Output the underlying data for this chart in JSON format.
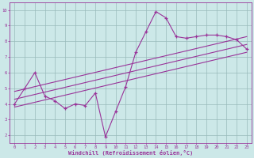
{
  "bg_color": "#cce8e8",
  "grid_color": "#99bbbb",
  "line_color": "#993399",
  "marker_color": "#993399",
  "xlabel": "Windchill (Refroidissement éolien,°C)",
  "xlim": [
    -0.5,
    23.5
  ],
  "ylim": [
    1.5,
    10.5
  ],
  "yticks": [
    2,
    3,
    4,
    5,
    6,
    7,
    8,
    9,
    10
  ],
  "xticks": [
    0,
    1,
    2,
    3,
    4,
    5,
    6,
    7,
    8,
    9,
    10,
    11,
    12,
    13,
    14,
    15,
    16,
    17,
    18,
    19,
    20,
    21,
    22,
    23
  ],
  "scatter_x": [
    0,
    1,
    2,
    3,
    4,
    5,
    6,
    7,
    8,
    9,
    10,
    11,
    12,
    13,
    14,
    15,
    16,
    17,
    18,
    19,
    20,
    21,
    22,
    23
  ],
  "scatter_y": [
    4.0,
    5.0,
    6.0,
    4.5,
    4.2,
    3.7,
    4.0,
    3.9,
    4.7,
    1.9,
    3.5,
    5.1,
    7.3,
    8.6,
    9.9,
    9.5,
    8.3,
    8.2,
    8.3,
    8.4,
    8.4,
    8.3,
    8.1,
    7.5
  ],
  "line1_x": [
    0,
    23
  ],
  "line1_y": [
    3.8,
    7.3
  ],
  "line2_x": [
    0,
    23
  ],
  "line2_y": [
    4.3,
    7.8
  ],
  "line3_x": [
    0,
    23
  ],
  "line3_y": [
    4.8,
    8.3
  ],
  "tick_fontsize": 4,
  "xlabel_fontsize": 5,
  "fig_width": 3.2,
  "fig_height": 2.0,
  "dpi": 100
}
